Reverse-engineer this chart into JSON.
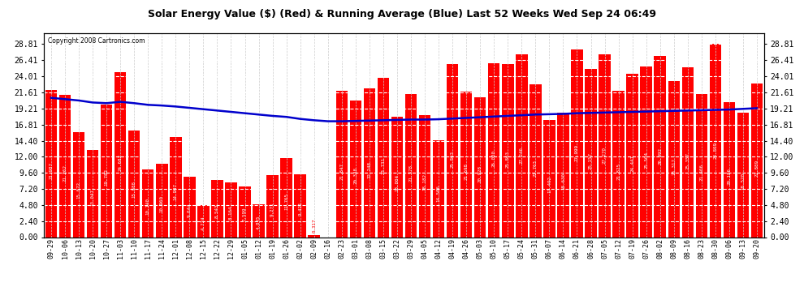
{
  "title": "Solar Energy Value ($) (Red) & Running Average (Blue) Last 52 Weeks Wed Sep 24 06:49",
  "copyright": "Copyright 2008 Cartronics.com",
  "bar_color": "#ff0000",
  "avg_color": "#0000cc",
  "background_color": "#ffffff",
  "plot_bg_color": "#ffffff",
  "grid_color": "#cccccc",
  "ylim": [
    0.0,
    30.41
  ],
  "yticks": [
    0.0,
    2.4,
    4.8,
    7.2,
    9.6,
    12.0,
    14.4,
    16.81,
    19.21,
    21.61,
    24.01,
    26.41,
    28.81
  ],
  "categories": [
    "09-29",
    "10-06",
    "10-13",
    "10-20",
    "10-27",
    "11-03",
    "11-10",
    "11-17",
    "11-24",
    "12-01",
    "12-08",
    "12-15",
    "12-22",
    "12-29",
    "01-05",
    "01-12",
    "01-19",
    "01-26",
    "02-02",
    "02-09",
    "02-16",
    "02-23",
    "03-01",
    "03-08",
    "03-15",
    "03-22",
    "03-29",
    "04-05",
    "04-12",
    "04-19",
    "04-26",
    "05-03",
    "05-10",
    "05-17",
    "05-24",
    "05-31",
    "06-07",
    "06-14",
    "06-21",
    "06-28",
    "07-05",
    "07-12",
    "07-19",
    "07-26",
    "08-02",
    "08-09",
    "08-16",
    "08-23",
    "08-30",
    "09-06",
    "09-13",
    "09-20"
  ],
  "values": [
    21.987,
    21.262,
    15.672,
    13.047,
    19.782,
    24.682,
    15.888,
    10.14,
    10.96,
    14.997,
    9.044,
    4.724,
    8.543,
    8.164,
    7.599,
    4.845,
    9.271,
    11.765,
    9.421,
    0.317,
    0.0,
    21.847,
    20.338,
    22.248,
    23.731,
    18.004,
    21.378,
    18.182,
    14.506,
    25.803,
    21.698,
    20.928,
    26.0,
    25.863,
    27.246,
    22.763,
    17.492,
    18.63,
    27.999,
    25.157,
    27.27,
    21.825,
    24.441,
    25.504,
    26.992,
    23.317,
    25.357,
    21.406,
    28.809,
    20.186,
    18.52,
    22.889
  ],
  "running_avg": [
    20.8,
    20.6,
    20.4,
    20.1,
    20.0,
    20.2,
    20.0,
    19.75,
    19.65,
    19.5,
    19.3,
    19.1,
    18.9,
    18.7,
    18.5,
    18.3,
    18.1,
    17.95,
    17.65,
    17.45,
    17.3,
    17.3,
    17.35,
    17.4,
    17.45,
    17.5,
    17.55,
    17.55,
    17.6,
    17.7,
    17.8,
    17.9,
    18.0,
    18.1,
    18.2,
    18.3,
    18.35,
    18.4,
    18.5,
    18.55,
    18.6,
    18.65,
    18.7,
    18.75,
    18.8,
    18.85,
    18.9,
    18.95,
    19.0,
    19.05,
    19.15,
    19.25
  ]
}
